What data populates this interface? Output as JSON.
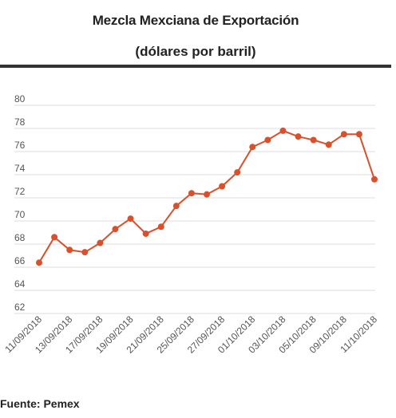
{
  "chart_data": {
    "type": "line",
    "title": "Mezcla Mexciana de Exportación",
    "subtitle": "(dólares por barril)",
    "source": "Fuente: Pemex",
    "xlabel": "",
    "ylabel": "",
    "ylim": [
      62,
      80
    ],
    "yticks": [
      62,
      64,
      66,
      68,
      70,
      72,
      74,
      76,
      78,
      80
    ],
    "grid": true,
    "line_color": "#d9512c",
    "x_tick_labels": [
      "11/09/2018",
      "13/09/2018",
      "17/09/2018",
      "19/09/2018",
      "21/09/2018",
      "25/09/2018",
      "27/09/2018",
      "01/10/2018",
      "03/10/2018",
      "05/10/2018",
      "09/10/2018",
      "11/10/2018"
    ],
    "series": [
      {
        "values": [
          66.4,
          68.6,
          67.5,
          67.3,
          68.1,
          69.3,
          70.2,
          68.9,
          69.5,
          71.3,
          72.4,
          72.3,
          73.0,
          74.2,
          76.4,
          77.0,
          77.8,
          77.3,
          77.0,
          76.6,
          77.5,
          77.5,
          73.6
        ]
      }
    ]
  }
}
